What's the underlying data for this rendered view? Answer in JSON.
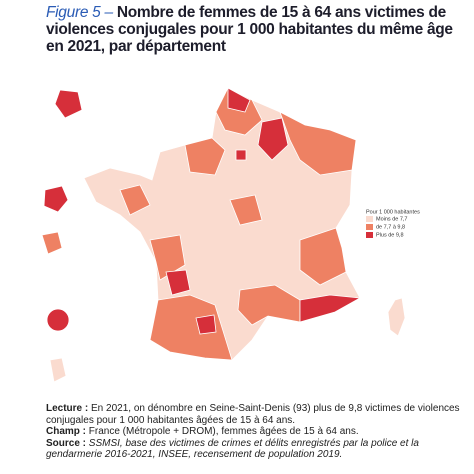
{
  "title": {
    "figure": "Figure 5 –",
    "text": "Nombre de femmes de 15 à 64 ans victimes de violences conjugales pour 1 000 habitantes du même âge en 2021, par département"
  },
  "legend": {
    "heading": "Pour 1 000 habitantes",
    "items": [
      {
        "label": "Moins de 7,7",
        "color": "#fadbcf"
      },
      {
        "label": "de 7,7 à 9,8",
        "color": "#ee8163"
      },
      {
        "label": "Plus de 9,8",
        "color": "#d62f3a"
      }
    ]
  },
  "notes": [
    {
      "label": "Lecture :",
      "text": "En 2021, on dénombre en Seine-Saint-Denis (93) plus de 9,8 victimes de violences conjugales pour 1 000 habitantes âgées de 15 à 64 ans."
    },
    {
      "label": "Champ :",
      "text": "France (Métropole + DROM), femmes âgées de 15 à 64 ans."
    },
    {
      "label": "Source :",
      "text": "SSMSI, base des victimes de crimes et délits enregistrés par la police et la gendarmerie 2016-2021, INSEE, recensement de population 2019."
    }
  ]
}
